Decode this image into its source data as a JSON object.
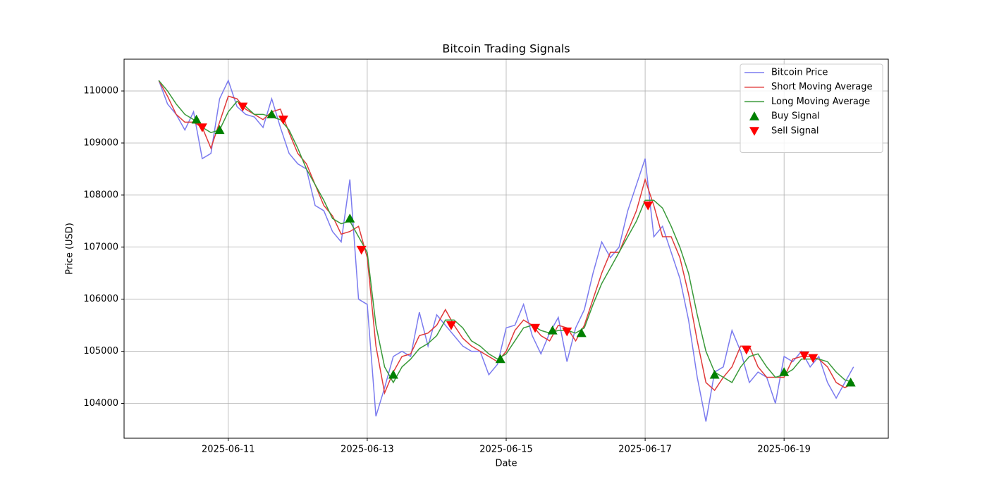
{
  "chart_data": {
    "type": "line",
    "title": "Bitcoin Trading Signals",
    "x_label": "Date",
    "y_label": "Price (USD)",
    "x": [
      "2025-06-10 00:00",
      "2025-06-10 03:00",
      "2025-06-10 06:00",
      "2025-06-10 09:00",
      "2025-06-10 12:00",
      "2025-06-10 15:00",
      "2025-06-10 18:00",
      "2025-06-10 21:00",
      "2025-06-11 00:00",
      "2025-06-11 03:00",
      "2025-06-11 06:00",
      "2025-06-11 09:00",
      "2025-06-11 12:00",
      "2025-06-11 15:00",
      "2025-06-11 18:00",
      "2025-06-11 21:00",
      "2025-06-12 00:00",
      "2025-06-12 03:00",
      "2025-06-12 06:00",
      "2025-06-12 09:00",
      "2025-06-12 12:00",
      "2025-06-12 15:00",
      "2025-06-12 18:00",
      "2025-06-12 21:00",
      "2025-06-13 00:00",
      "2025-06-13 03:00",
      "2025-06-13 06:00",
      "2025-06-13 09:00",
      "2025-06-13 12:00",
      "2025-06-13 15:00",
      "2025-06-13 18:00",
      "2025-06-13 21:00",
      "2025-06-14 00:00",
      "2025-06-14 03:00",
      "2025-06-14 06:00",
      "2025-06-14 09:00",
      "2025-06-14 12:00",
      "2025-06-14 15:00",
      "2025-06-14 18:00",
      "2025-06-14 21:00",
      "2025-06-15 00:00",
      "2025-06-15 03:00",
      "2025-06-15 06:00",
      "2025-06-15 09:00",
      "2025-06-15 12:00",
      "2025-06-15 15:00",
      "2025-06-15 18:00",
      "2025-06-15 21:00",
      "2025-06-16 00:00",
      "2025-06-16 03:00",
      "2025-06-16 06:00",
      "2025-06-16 09:00",
      "2025-06-16 12:00",
      "2025-06-16 15:00",
      "2025-06-16 18:00",
      "2025-06-16 21:00",
      "2025-06-17 00:00",
      "2025-06-17 03:00",
      "2025-06-17 06:00",
      "2025-06-17 09:00",
      "2025-06-17 12:00",
      "2025-06-17 15:00",
      "2025-06-17 18:00",
      "2025-06-17 21:00",
      "2025-06-18 00:00",
      "2025-06-18 03:00",
      "2025-06-18 06:00",
      "2025-06-18 09:00",
      "2025-06-18 12:00",
      "2025-06-18 15:00",
      "2025-06-18 18:00",
      "2025-06-18 21:00",
      "2025-06-19 00:00",
      "2025-06-19 03:00",
      "2025-06-19 06:00",
      "2025-06-19 09:00",
      "2025-06-19 12:00",
      "2025-06-19 15:00",
      "2025-06-19 18:00",
      "2025-06-19 21:00",
      "2025-06-20 00:00"
    ],
    "series": [
      {
        "name": "Bitcoin Price",
        "kind": "line",
        "color": "#7b7bef",
        "values": [
          110200,
          109750,
          109550,
          109250,
          109600,
          108700,
          108800,
          109850,
          110200,
          109700,
          109550,
          109500,
          109300,
          109850,
          109300,
          108800,
          108600,
          108500,
          107800,
          107700,
          107300,
          107100,
          108300,
          106000,
          105900,
          103750,
          104300,
          104900,
          105000,
          104900,
          105750,
          105100,
          105700,
          105500,
          105300,
          105100,
          105000,
          105000,
          104550,
          104750,
          105450,
          105500,
          105900,
          105300,
          104950,
          105350,
          105650,
          104800,
          105450,
          105800,
          106500,
          107100,
          106800,
          107000,
          107700,
          108200,
          108700,
          107200,
          107400,
          106900,
          106400,
          105600,
          104500,
          103650,
          104600,
          104700,
          105400,
          105000,
          104400,
          104600,
          104500,
          104000,
          104900,
          104800,
          105000,
          104700,
          104900,
          104400,
          104100,
          104400,
          104700
        ]
      },
      {
        "name": "Short Moving Average",
        "kind": "line",
        "color": "#e03a3a",
        "values": [
          110200,
          109900,
          109550,
          109400,
          109400,
          109300,
          108900,
          109400,
          109900,
          109850,
          109650,
          109550,
          109450,
          109600,
          109650,
          109200,
          108800,
          108600,
          108200,
          107800,
          107600,
          107250,
          107300,
          107400,
          106800,
          105100,
          104200,
          104600,
          104900,
          104950,
          105300,
          105350,
          105500,
          105800,
          105500,
          105250,
          105100,
          105000,
          104900,
          104800,
          105000,
          105400,
          105600,
          105500,
          105300,
          105200,
          105500,
          105450,
          105200,
          105500,
          106000,
          106500,
          106900,
          106900,
          107300,
          107700,
          108300,
          107800,
          107200,
          107200,
          106800,
          106100,
          105200,
          104400,
          104250,
          104500,
          104700,
          105100,
          105100,
          104700,
          104500,
          104500,
          104500,
          104850,
          104900,
          104900,
          104850,
          104700,
          104400,
          104300,
          104400
        ]
      },
      {
        "name": "Long Moving Average",
        "kind": "line",
        "color": "#3a9a3a",
        "values": [
          110200,
          110000,
          109750,
          109550,
          109450,
          109300,
          109200,
          109250,
          109600,
          109800,
          109700,
          109550,
          109550,
          109500,
          109450,
          109250,
          108900,
          108500,
          108200,
          107900,
          107550,
          107450,
          107500,
          107200,
          106900,
          105500,
          104700,
          104400,
          104700,
          104850,
          105050,
          105150,
          105300,
          105600,
          105600,
          105450,
          105200,
          105100,
          104950,
          104850,
          104950,
          105200,
          105450,
          105500,
          105400,
          105350,
          105400,
          105400,
          105350,
          105450,
          105900,
          106300,
          106600,
          106900,
          107200,
          107500,
          107900,
          107900,
          107750,
          107400,
          107000,
          106500,
          105700,
          105000,
          104600,
          104500,
          104400,
          104700,
          104900,
          104950,
          104700,
          104500,
          104550,
          104650,
          104850,
          104850,
          104850,
          104800,
          104600,
          104450,
          104400
        ]
      },
      {
        "name": "Buy Signal",
        "kind": "marker",
        "marker": "up",
        "color": "#008000",
        "x": [
          "2025-06-10 13:00",
          "2025-06-10 21:00",
          "2025-06-11 15:00",
          "2025-06-12 18:00",
          "2025-06-13 09:00",
          "2025-06-14 22:00",
          "2025-06-15 16:00",
          "2025-06-16 02:00",
          "2025-06-18 00:00",
          "2025-06-19 00:00",
          "2025-06-19 23:00"
        ],
        "values": [
          109450,
          109250,
          109550,
          107550,
          104550,
          104850,
          105400,
          105350,
          104550,
          104600,
          104400
        ]
      },
      {
        "name": "Sell Signal",
        "kind": "marker",
        "marker": "down",
        "color": "#ff0000",
        "x": [
          "2025-06-10 15:00",
          "2025-06-11 05:00",
          "2025-06-11 19:00",
          "2025-06-12 22:00",
          "2025-06-14 05:00",
          "2025-06-15 10:00",
          "2025-06-15 21:00",
          "2025-06-17 01:00",
          "2025-06-18 11:00",
          "2025-06-19 07:00",
          "2025-06-19 10:00"
        ],
        "values": [
          109300,
          109700,
          109450,
          106950,
          105500,
          105450,
          105380,
          107800,
          105030,
          104920,
          104870
        ]
      }
    ],
    "xlim": [
      "2025-06-09 12:00",
      "2025-06-20 12:00"
    ],
    "xticks": [
      "2025-06-11",
      "2025-06-13",
      "2025-06-15",
      "2025-06-17",
      "2025-06-19"
    ],
    "ylim": [
      103330,
      110610
    ],
    "yticks": [
      104000,
      105000,
      106000,
      107000,
      108000,
      109000,
      110000
    ],
    "grid": true,
    "legend": "upper right"
  }
}
